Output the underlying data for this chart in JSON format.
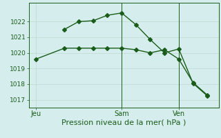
{
  "line1": {
    "x": [
      0,
      2,
      3,
      4,
      5,
      6,
      7,
      8,
      9,
      10,
      11,
      12
    ],
    "y": [
      1019.6,
      1020.3,
      1020.3,
      1020.3,
      1020.3,
      1020.3,
      1020.2,
      1020.0,
      1020.2,
      1019.6,
      1018.1,
      1017.3
    ]
  },
  "line2": {
    "x": [
      2,
      3,
      4,
      5,
      6,
      7,
      8,
      9,
      10,
      11,
      12
    ],
    "y": [
      1021.5,
      1022.0,
      1022.05,
      1022.4,
      1022.55,
      1021.8,
      1020.85,
      1020.0,
      1020.25,
      1018.05,
      1017.25
    ]
  },
  "ylim": [
    1016.5,
    1023.2
  ],
  "xlim": [
    -0.5,
    12.8
  ],
  "yticks": [
    1017,
    1018,
    1019,
    1020,
    1021,
    1022
  ],
  "xlabel": "Pression niveau de la mer( hPa )",
  "xtick_positions": [
    0,
    6,
    10
  ],
  "xtick_labels": [
    "Jeu",
    "Sam",
    "Ven"
  ],
  "vlines": [
    6,
    10
  ],
  "bg_color": "#d5edec",
  "grid_color": "#c0d8d0",
  "line_color": "#1a5c1a",
  "xlabel_fontsize": 8,
  "ytick_fontsize": 6.5,
  "xtick_fontsize": 7,
  "linewidth": 1.0,
  "markersize": 3.0,
  "marker": "D"
}
